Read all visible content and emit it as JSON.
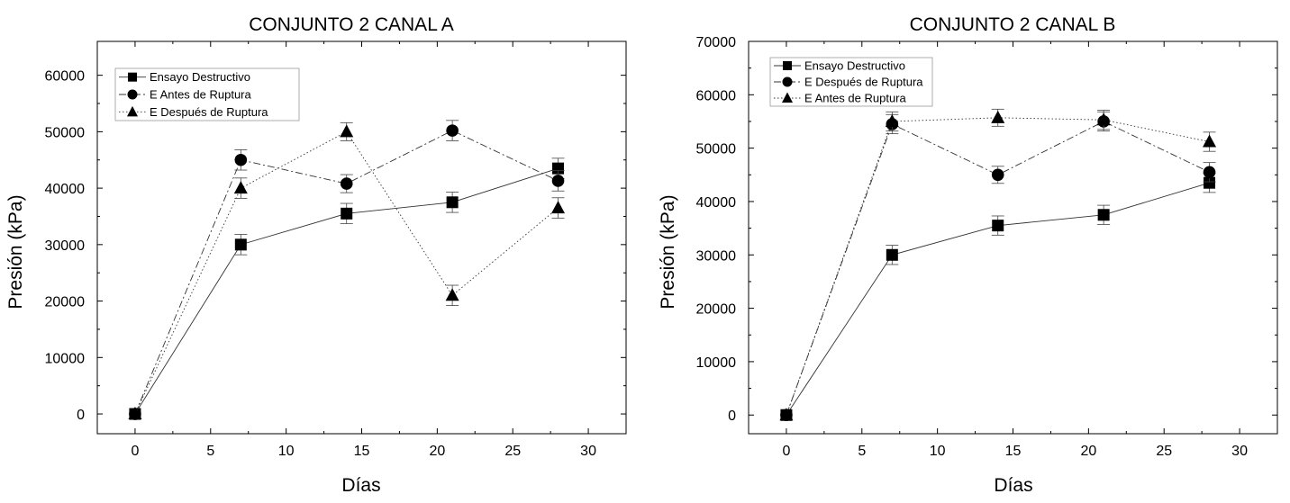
{
  "chart_data": [
    {
      "type": "line",
      "title": "CONJUNTO 2 CANAL A",
      "xlabel": "Días",
      "ylabel": "Presión (kPa)",
      "xlim": [
        -2.5,
        32.5
      ],
      "ylim": [
        -3500,
        66000
      ],
      "x_ticks": [
        0,
        5,
        10,
        15,
        20,
        25,
        30
      ],
      "x_tick_labels": [
        "0",
        "5",
        "10",
        "15",
        "20",
        "25",
        "30"
      ],
      "y_ticks": [
        0,
        10000,
        20000,
        30000,
        40000,
        50000,
        60000
      ],
      "y_tick_labels": [
        "0",
        "10000",
        "20000",
        "30000",
        "40000",
        "50000",
        "60000"
      ],
      "legend_position": "top-left",
      "series": [
        {
          "name": "Ensayo Destructivo",
          "marker": "square",
          "line_style": "solid",
          "x": [
            0,
            7,
            14,
            21,
            28
          ],
          "y": [
            0,
            30000,
            35500,
            37500,
            43500
          ],
          "error": [
            0,
            1800,
            1800,
            1800,
            1800
          ]
        },
        {
          "name": "E  Antes de Ruptura",
          "marker": "circle",
          "line_style": "dashdot",
          "x": [
            0,
            7,
            14,
            21,
            28
          ],
          "y": [
            0,
            45000,
            40800,
            50200,
            41300
          ],
          "error": [
            0,
            1800,
            1600,
            1800,
            1800
          ]
        },
        {
          "name": "E Después de Ruptura",
          "marker": "triangle",
          "line_style": "dotted",
          "x": [
            0,
            7,
            14,
            21,
            28
          ],
          "y": [
            0,
            40000,
            50000,
            21000,
            36500
          ],
          "error": [
            0,
            1800,
            1600,
            1800,
            1800
          ]
        }
      ]
    },
    {
      "type": "line",
      "title": "CONJUNTO 2 CANAL B",
      "xlabel": "Días",
      "ylabel": "Presión (kPa)",
      "xlim": [
        -2.5,
        32.5
      ],
      "ylim": [
        -3500,
        70000
      ],
      "x_ticks": [
        0,
        5,
        10,
        15,
        20,
        25,
        30
      ],
      "x_tick_labels": [
        "0",
        "5",
        "10",
        "15",
        "20",
        "25",
        "30"
      ],
      "y_ticks": [
        0,
        10000,
        20000,
        30000,
        40000,
        50000,
        60000,
        70000
      ],
      "y_tick_labels": [
        "0",
        "10000",
        "20000",
        "30000",
        "40000",
        "50000",
        "60000",
        "70000"
      ],
      "legend_position": "top-left",
      "series": [
        {
          "name": "Ensayo Destructivo",
          "marker": "square",
          "line_style": "solid",
          "x": [
            0,
            7,
            14,
            21,
            28
          ],
          "y": [
            0,
            30000,
            35500,
            37500,
            43500
          ],
          "error": [
            0,
            1800,
            1800,
            1800,
            1800
          ]
        },
        {
          "name": "E Después de Ruptura",
          "marker": "circle",
          "line_style": "dashdot",
          "x": [
            0,
            7,
            14,
            21,
            28
          ],
          "y": [
            0,
            54500,
            45000,
            55000,
            45500
          ],
          "error": [
            0,
            1800,
            1600,
            1800,
            1800
          ]
        },
        {
          "name": "E  Antes de Ruptura",
          "marker": "triangle",
          "line_style": "dotted",
          "x": [
            0,
            7,
            14,
            21,
            28
          ],
          "y": [
            0,
            55000,
            55700,
            55300,
            51200
          ],
          "error": [
            0,
            1800,
            1600,
            1800,
            1800
          ]
        }
      ]
    }
  ]
}
